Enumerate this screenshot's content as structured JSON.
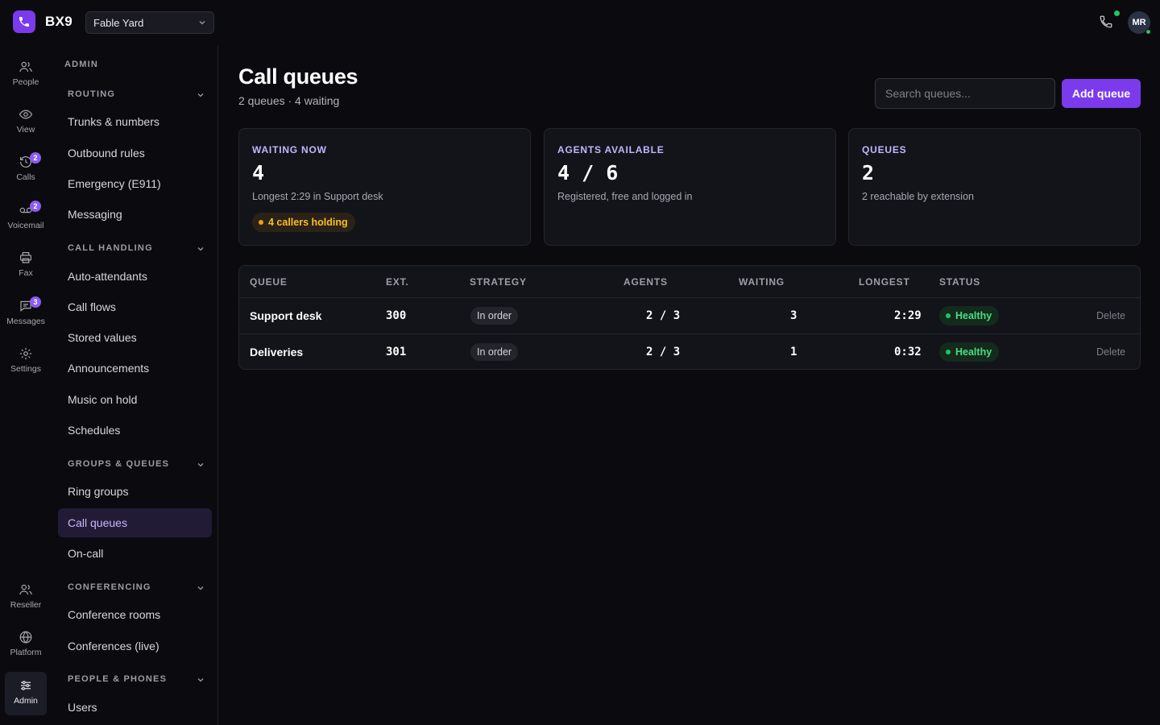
{
  "app": {
    "brand": "BX9",
    "org": "Fable Yard",
    "user_initials": "MR"
  },
  "rail": [
    {
      "label": "People",
      "icon": "people-icon"
    },
    {
      "label": "View",
      "icon": "eye-icon"
    },
    {
      "label": "Calls",
      "icon": "history-icon",
      "badge": "2"
    },
    {
      "label": "Voicemail",
      "icon": "voicemail-icon",
      "badge": "2"
    },
    {
      "label": "Fax",
      "icon": "printer-icon"
    },
    {
      "label": "Messages",
      "icon": "message-icon",
      "badge": "3"
    },
    {
      "label": "Settings",
      "icon": "gear-icon"
    },
    {
      "label": "Reseller",
      "icon": "reseller-icon"
    },
    {
      "label": "Platform",
      "icon": "globe-icon"
    },
    {
      "label": "Admin",
      "icon": "sliders-icon"
    }
  ],
  "sidebar": {
    "title": "ADMIN",
    "routing": {
      "head": "ROUTING",
      "items": [
        "Trunks & numbers",
        "Outbound rules",
        "Emergency (E911)",
        "Messaging"
      ]
    },
    "call_handling": {
      "head": "CALL HANDLING",
      "items": [
        "Auto-attendants",
        "Call flows",
        "Stored values",
        "Announcements",
        "Music on hold",
        "Schedules"
      ]
    },
    "groups_queues": {
      "head": "GROUPS & QUEUES",
      "items": [
        "Ring groups",
        "Call queues",
        "On-call"
      ]
    },
    "conferencing": {
      "head": "CONFERENCING",
      "items": [
        "Conference rooms",
        "Conferences (live)"
      ]
    },
    "people_phones": {
      "head": "PEOPLE & PHONES",
      "items": [
        "Users"
      ]
    }
  },
  "page": {
    "title": "Call queues",
    "subtitle": "2 queues · 4 waiting",
    "search_placeholder": "Search queues...",
    "add_label": "Add queue"
  },
  "cards": [
    {
      "kicker": "WAITING NOW",
      "value": "4",
      "desc": "Longest 2:29 in Support desk",
      "pill": "4 callers holding"
    },
    {
      "kicker": "AGENTS AVAILABLE",
      "value": "4 / 6",
      "desc": "Registered, free and logged in"
    },
    {
      "kicker": "QUEUES",
      "value": "2",
      "desc": "2 reachable by extension"
    }
  ],
  "table": {
    "headers": [
      "QUEUE",
      "EXT.",
      "STRATEGY",
      "AGENTS",
      "WAITING",
      "LONGEST",
      "STATUS"
    ],
    "rows": [
      {
        "queue": "Support desk",
        "ext": "300",
        "strategy": "In order",
        "agents": "2 / 3",
        "waiting": "3",
        "longest": "2:29",
        "status": "Healthy",
        "action": "Delete"
      },
      {
        "queue": "Deliveries",
        "ext": "301",
        "strategy": "In order",
        "agents": "2 / 3",
        "waiting": "1",
        "longest": "0:32",
        "status": "Healthy",
        "action": "Delete"
      }
    ]
  },
  "colors": {
    "accent": "#7c3aed",
    "healthy": "#4ade80",
    "warning": "#fbbf24"
  }
}
